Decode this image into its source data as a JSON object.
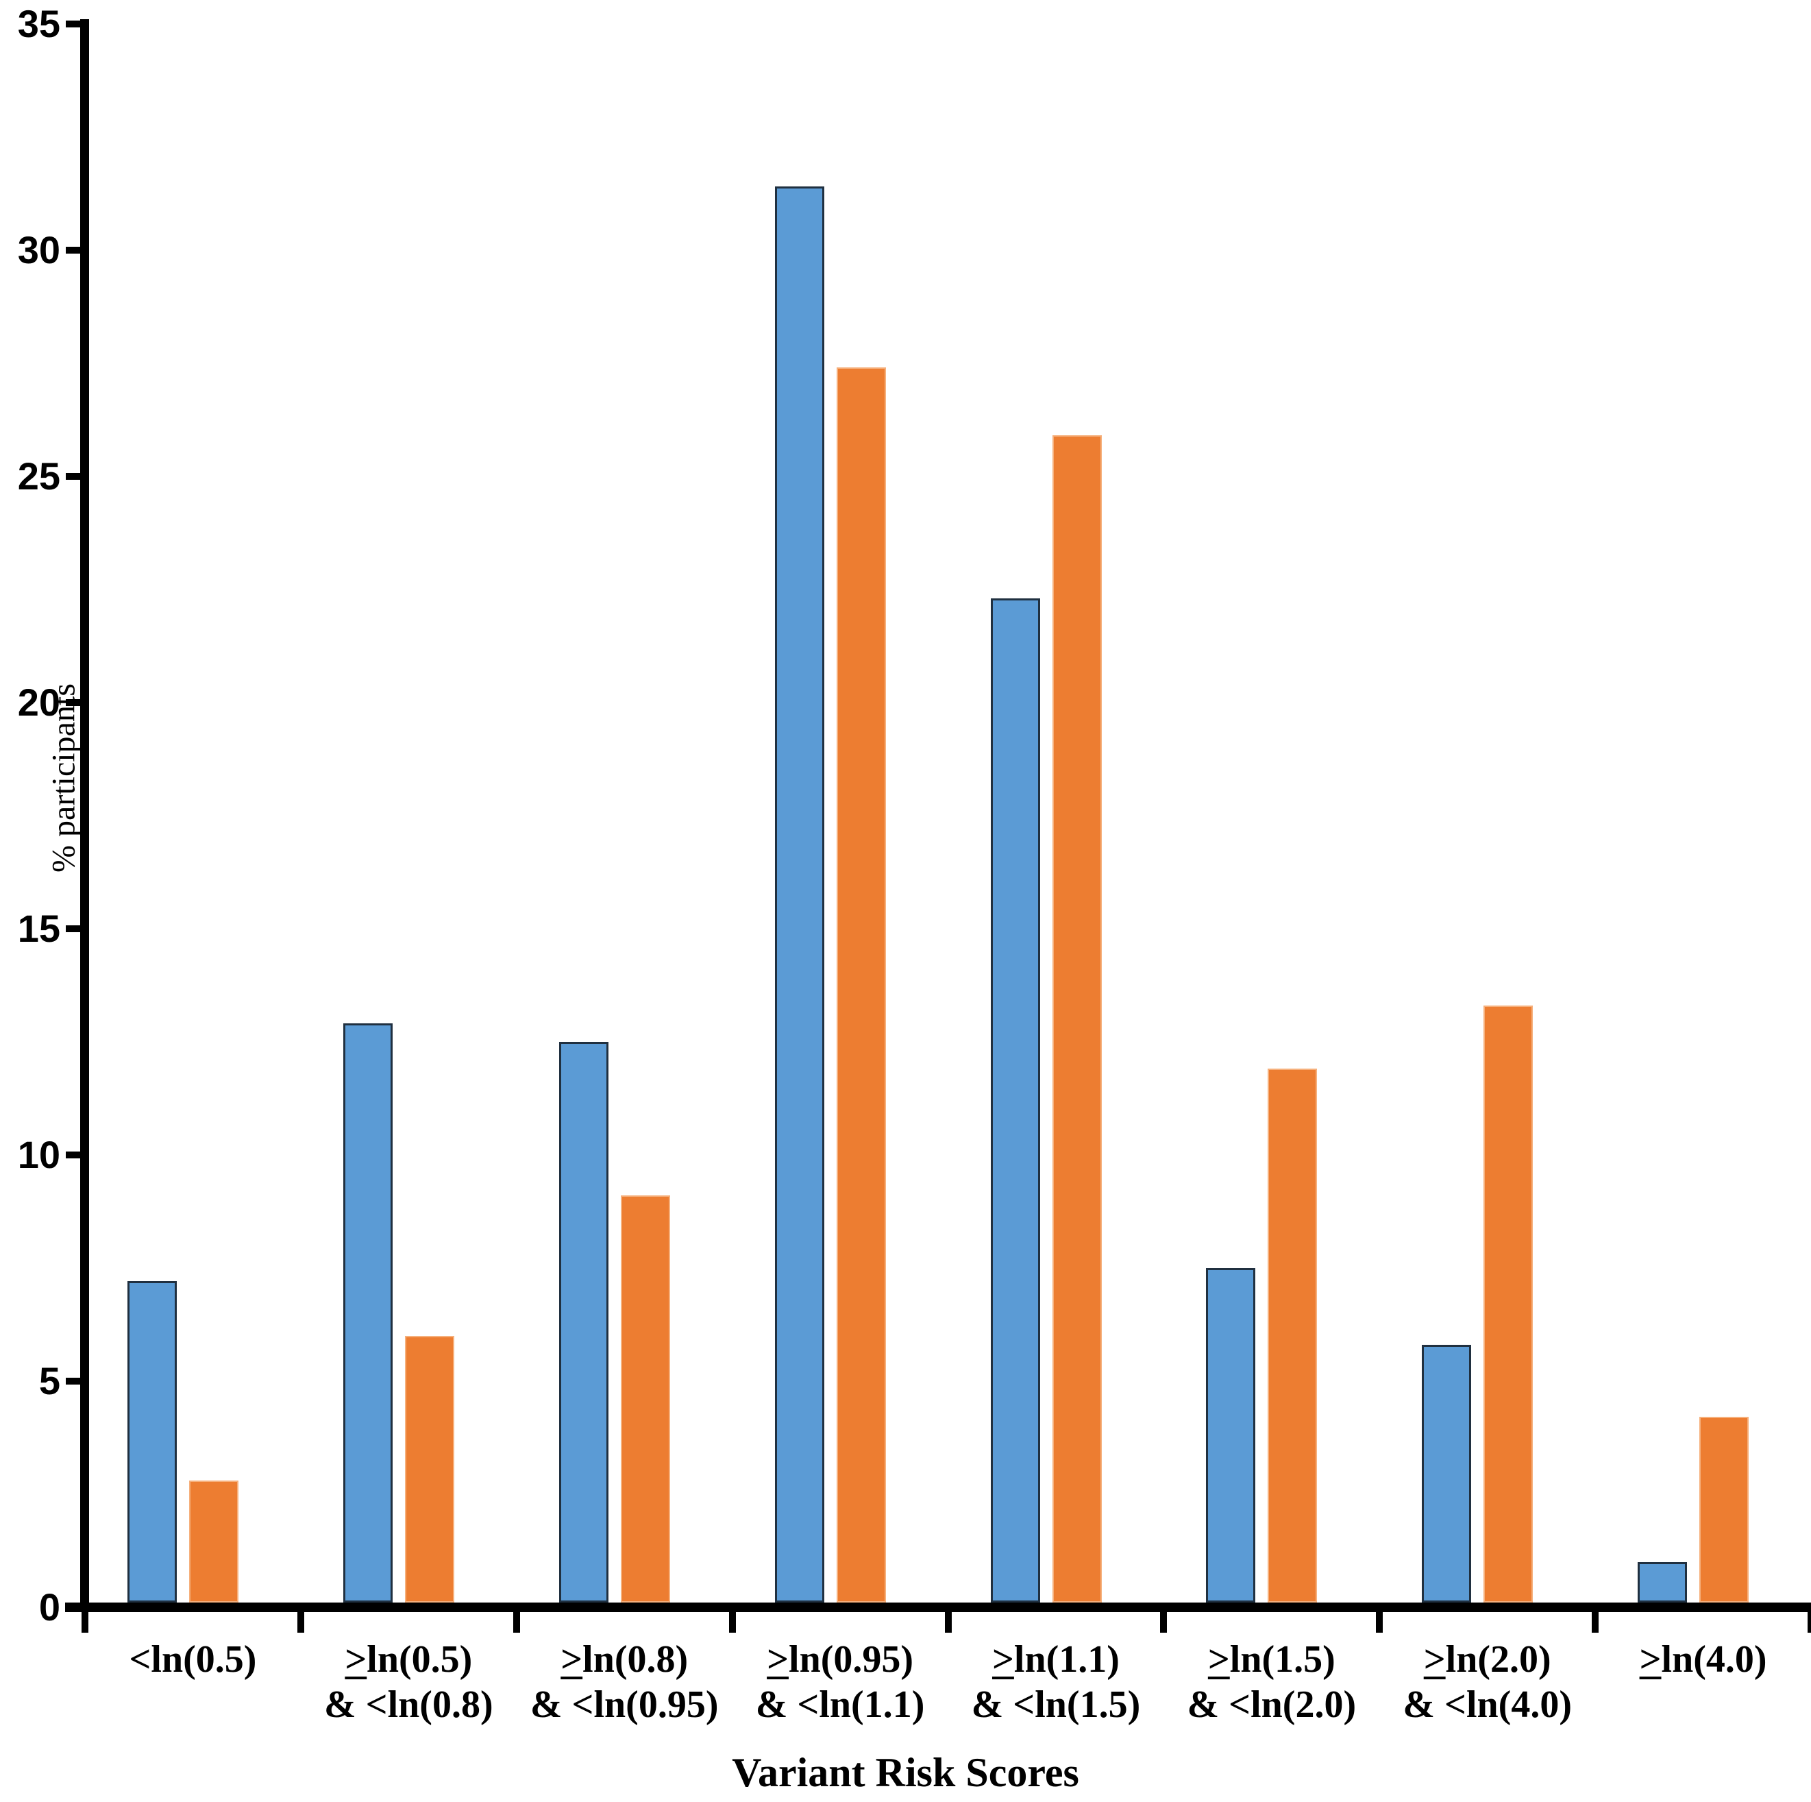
{
  "figure": {
    "background": "#ffffff",
    "axis_color": "#000000"
  },
  "chart_data": {
    "type": "bar",
    "title": "",
    "xlabel": "Variant Risk Scores",
    "ylabel": "% participants",
    "ylim": [
      0,
      35
    ],
    "ytick_step": 5,
    "ytick_labels": [
      "0",
      "5",
      "10",
      "15",
      "20",
      "25",
      "30",
      "35"
    ],
    "grid": false,
    "legend_position": "none",
    "categories": [
      {
        "line1": "<ln(0.5)",
        "line2": ""
      },
      {
        "line1": "≥ln(0.5)",
        "line2": "& <ln(0.8)"
      },
      {
        "line1": "≥ln(0.8)",
        "line2": "& <ln(0.95)"
      },
      {
        "line1": "≥ln(0.95)",
        "line2": "& <ln(1.1)"
      },
      {
        "line1": "≥ln(1.1)",
        "line2": "& <ln(1.5)"
      },
      {
        "line1": "≥ln(1.5)",
        "line2": "& <ln(2.0)"
      },
      {
        "line1": "≥ln(2.0)",
        "line2": "& <ln(4.0)"
      },
      {
        "line1": "≥ln(4.0)",
        "line2": ""
      }
    ],
    "series": [
      {
        "name": "blue-series",
        "color": "#5B9BD5",
        "border_color": "#203040",
        "values": [
          7.1,
          12.8,
          12.4,
          31.3,
          22.2,
          7.4,
          5.7,
          0.9
        ]
      },
      {
        "name": "orange-series",
        "color": "#ED7D31",
        "border_color": "#F6B07C",
        "values": [
          2.7,
          5.9,
          9.0,
          27.3,
          25.8,
          11.8,
          13.2,
          4.1
        ]
      }
    ]
  }
}
